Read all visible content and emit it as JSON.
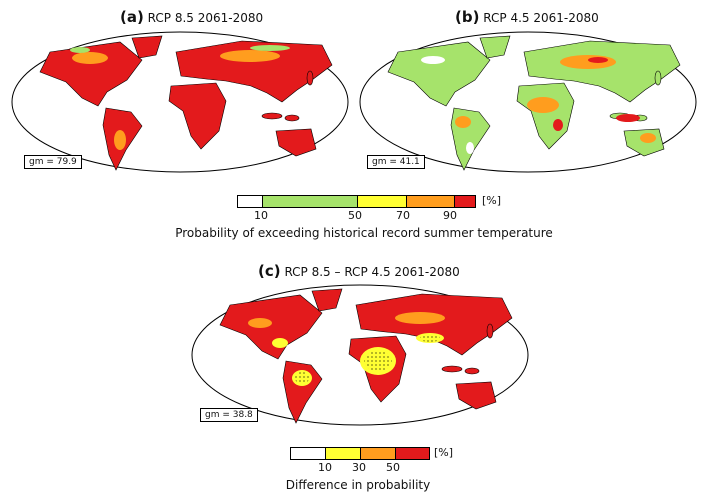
{
  "panels": [
    {
      "letter": "(a)",
      "title": "RCP 8.5 2061-2080",
      "gm": "gm = 79.9",
      "land_color": "#e31a1c",
      "patch_color": "#ff9d1e",
      "patch2_color": "#a6e36b"
    },
    {
      "letter": "(b)",
      "title": "RCP 4.5 2061-2080",
      "gm": "gm = 41.1",
      "land_color": "#a6e36b",
      "patch_color": "#ff9d1e",
      "patch2_color": "#e31a1c"
    },
    {
      "letter": "(c)",
      "title": "RCP 8.5 – RCP 4.5 2061-2080",
      "gm": "gm = 38.8",
      "land_color": "#e31a1c",
      "patch_color": "#ffff33",
      "patch2_color": "#ff9d1e"
    }
  ],
  "colorbar1": {
    "ticks": [
      "10",
      "50",
      "70",
      "90"
    ],
    "unit": "[%]",
    "caption": "Probability of exceeding historical record summer temperature",
    "colors": [
      "#ffffff",
      "#a6e36b",
      "#ffff33",
      "#ff9d1e",
      "#e31a1c"
    ]
  },
  "colorbar2": {
    "ticks": [
      "10",
      "30",
      "50"
    ],
    "unit": "[%]",
    "caption": "Difference in probability",
    "colors": [
      "#ffffff",
      "#ffff33",
      "#ff9d1e",
      "#e31a1c"
    ]
  }
}
